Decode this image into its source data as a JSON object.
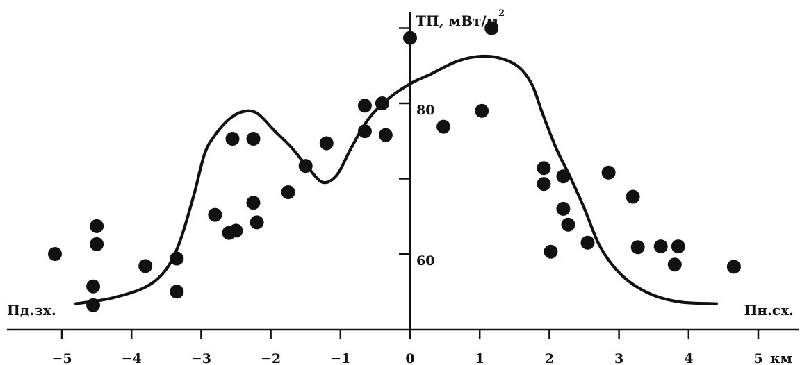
{
  "chart_data": {
    "type": "scatter",
    "title": "",
    "xlabel": "км",
    "ylabel": "ТП, мВт/м",
    "ylabel_sup": "2",
    "direction_left": "Пд.зх.",
    "direction_right": "Пн.сх.",
    "xlim": [
      -5.5,
      5.5
    ],
    "ylim": [
      52,
      92
    ],
    "x_ticks": [
      -5,
      -4,
      -3,
      -2,
      -1,
      0,
      1,
      2,
      3,
      4,
      5
    ],
    "x_tick_labels": [
      "−5",
      "−4",
      "−3",
      "−2",
      "−1",
      "0",
      "1",
      "2",
      "3",
      "4",
      "5"
    ],
    "y_ticks": [
      60,
      70,
      80,
      90
    ],
    "y_tick_labels": [
      "60",
      "",
      "80",
      ""
    ],
    "grid": false,
    "colors": {
      "ink": "#111111",
      "background": "#ffffff"
    },
    "series": [
      {
        "kind": "points",
        "points": [
          [
            -5.1,
            60.0
          ],
          [
            -4.55,
            53.2
          ],
          [
            -4.5,
            61.3
          ],
          [
            -4.55,
            55.7
          ],
          [
            -4.5,
            63.7
          ],
          [
            -3.8,
            58.4
          ],
          [
            -3.35,
            59.4
          ],
          [
            -3.35,
            55.0
          ],
          [
            -2.8,
            65.2
          ],
          [
            -2.6,
            62.8
          ],
          [
            -2.55,
            75.3
          ],
          [
            -2.5,
            63.1
          ],
          [
            -2.25,
            75.3
          ],
          [
            -2.25,
            66.8
          ],
          [
            -2.2,
            64.2
          ],
          [
            -1.75,
            68.2
          ],
          [
            -1.5,
            71.7
          ],
          [
            -1.2,
            74.7
          ],
          [
            -0.65,
            79.7
          ],
          [
            -0.65,
            76.3
          ],
          [
            -0.4,
            80.0
          ],
          [
            -0.35,
            75.8
          ],
          [
            0.0,
            88.7
          ],
          [
            0.48,
            76.9
          ],
          [
            1.03,
            79.0
          ],
          [
            1.17,
            90.0
          ],
          [
            1.92,
            71.4
          ],
          [
            1.92,
            69.3
          ],
          [
            2.02,
            60.3
          ],
          [
            2.2,
            70.3
          ],
          [
            2.2,
            66.0
          ],
          [
            2.27,
            63.9
          ],
          [
            2.55,
            61.5
          ],
          [
            2.85,
            70.8
          ],
          [
            3.2,
            67.6
          ],
          [
            3.27,
            60.9
          ],
          [
            3.6,
            61.0
          ],
          [
            3.8,
            58.6
          ],
          [
            3.85,
            61.0
          ],
          [
            4.65,
            58.3
          ]
        ]
      },
      {
        "kind": "curve",
        "points": [
          [
            -4.8,
            53.4
          ],
          [
            -4.3,
            54.1
          ],
          [
            -3.8,
            55.6
          ],
          [
            -3.5,
            58.0
          ],
          [
            -3.3,
            61.8
          ],
          [
            -3.1,
            68.0
          ],
          [
            -2.95,
            73.3
          ],
          [
            -2.8,
            75.8
          ],
          [
            -2.6,
            77.9
          ],
          [
            -2.4,
            78.9
          ],
          [
            -2.2,
            78.7
          ],
          [
            -1.95,
            76.4
          ],
          [
            -1.7,
            74.1
          ],
          [
            -1.45,
            71.3
          ],
          [
            -1.25,
            69.5
          ],
          [
            -1.05,
            70.5
          ],
          [
            -0.85,
            74.0
          ],
          [
            -0.6,
            77.9
          ],
          [
            -0.3,
            80.7
          ],
          [
            0.0,
            82.6
          ],
          [
            0.3,
            83.9
          ],
          [
            0.65,
            85.5
          ],
          [
            0.95,
            86.2
          ],
          [
            1.25,
            86.1
          ],
          [
            1.55,
            84.9
          ],
          [
            1.75,
            82.5
          ],
          [
            1.9,
            78.7
          ],
          [
            2.1,
            74.0
          ],
          [
            2.3,
            70.2
          ],
          [
            2.5,
            66.1
          ],
          [
            2.7,
            61.5
          ],
          [
            2.9,
            58.6
          ],
          [
            3.15,
            56.3
          ],
          [
            3.5,
            54.5
          ],
          [
            3.9,
            53.6
          ],
          [
            4.4,
            53.4
          ]
        ]
      }
    ]
  }
}
